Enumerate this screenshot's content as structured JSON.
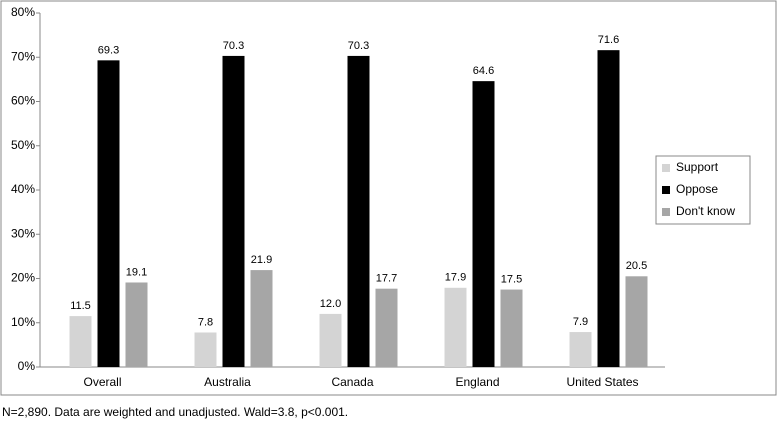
{
  "chart_data": {
    "type": "bar",
    "categories": [
      "Overall",
      "Australia",
      "Canada",
      "England",
      "United States"
    ],
    "series": [
      {
        "name": "Support",
        "color": "#d4d4d4",
        "values": [
          11.5,
          7.8,
          12.0,
          17.9,
          7.9
        ],
        "value_labels": [
          "11.5",
          "7.8",
          "12.0",
          "17.9",
          "7.9"
        ]
      },
      {
        "name": "Oppose",
        "color": "#000000",
        "values": [
          69.3,
          70.3,
          70.3,
          64.6,
          71.6
        ],
        "value_labels": [
          "69.3",
          "70.3",
          "70.3",
          "64.6",
          "71.6"
        ]
      },
      {
        "name": "Don't know",
        "color": "#a6a6a6",
        "values": [
          19.1,
          21.9,
          17.7,
          17.5,
          20.5
        ],
        "value_labels": [
          "19.1",
          "21.9",
          "17.7",
          "17.5",
          "20.5"
        ]
      }
    ],
    "ylim": [
      0,
      80
    ],
    "yticks": [
      {
        "value": 0,
        "label": "0%"
      },
      {
        "value": 10,
        "label": "10%"
      },
      {
        "value": 20,
        "label": "20%"
      },
      {
        "value": 30,
        "label": "30%"
      },
      {
        "value": 40,
        "label": "40%"
      },
      {
        "value": 50,
        "label": "50%"
      },
      {
        "value": 60,
        "label": "60%"
      },
      {
        "value": 70,
        "label": "70%"
      },
      {
        "value": 80,
        "label": "80%"
      }
    ],
    "grid": false,
    "legend": "right",
    "caption": "N=2,890. Data are weighted and unadjusted. Wald=3.8, p<0.001."
  }
}
